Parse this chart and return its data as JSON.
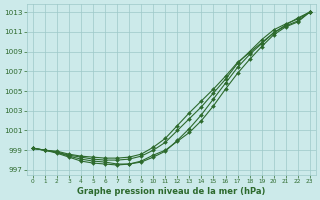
{
  "x": [
    0,
    1,
    2,
    3,
    4,
    5,
    6,
    7,
    8,
    9,
    10,
    11,
    12,
    13,
    14,
    15,
    16,
    17,
    18,
    19,
    20,
    21,
    22,
    23
  ],
  "line1": [
    999.2,
    999.0,
    998.8,
    998.5,
    998.3,
    998.1,
    998.0,
    998.0,
    998.1,
    998.4,
    999.0,
    999.8,
    1001.0,
    1002.2,
    1003.4,
    1004.8,
    1006.2,
    1007.8,
    1009.0,
    1010.2,
    1011.2,
    1011.8,
    1012.3,
    1013.0
  ],
  "line2": [
    999.2,
    999.0,
    998.7,
    998.3,
    997.9,
    997.7,
    997.6,
    997.5,
    997.6,
    997.9,
    998.5,
    999.0,
    999.9,
    1000.8,
    1002.0,
    1003.5,
    1005.2,
    1006.8,
    1008.2,
    1009.5,
    1010.7,
    1011.5,
    1012.0,
    1013.0
  ],
  "line3": [
    999.2,
    999.0,
    998.8,
    998.4,
    998.1,
    997.9,
    997.8,
    997.6,
    997.6,
    997.8,
    998.3,
    998.9,
    1000.0,
    1001.2,
    1002.6,
    1004.2,
    1005.8,
    1007.4,
    1008.7,
    1009.8,
    1010.9,
    1011.6,
    1012.1,
    1013.0
  ],
  "line4": [
    999.2,
    999.0,
    998.9,
    998.6,
    998.4,
    998.3,
    998.2,
    998.2,
    998.3,
    998.6,
    999.3,
    1000.2,
    1001.5,
    1002.8,
    1004.0,
    1005.2,
    1006.5,
    1007.9,
    1008.9,
    1009.9,
    1010.9,
    1011.7,
    1012.4,
    1013.0
  ],
  "ylim": [
    996.5,
    1013.8
  ],
  "yticks": [
    997,
    999,
    1001,
    1003,
    1005,
    1007,
    1009,
    1011,
    1013
  ],
  "xticks": [
    0,
    1,
    2,
    3,
    4,
    5,
    6,
    7,
    8,
    9,
    10,
    11,
    12,
    13,
    14,
    15,
    16,
    17,
    18,
    19,
    20,
    21,
    22,
    23
  ],
  "line_color": "#2d6a2d",
  "bg_color": "#cceaea",
  "grid_color": "#9dc8c8",
  "xlabel": "Graphe pression niveau de la mer (hPa)",
  "xlabel_color": "#2d6a2d",
  "marker": "D",
  "marker_size": 2.0,
  "line_width": 0.8
}
